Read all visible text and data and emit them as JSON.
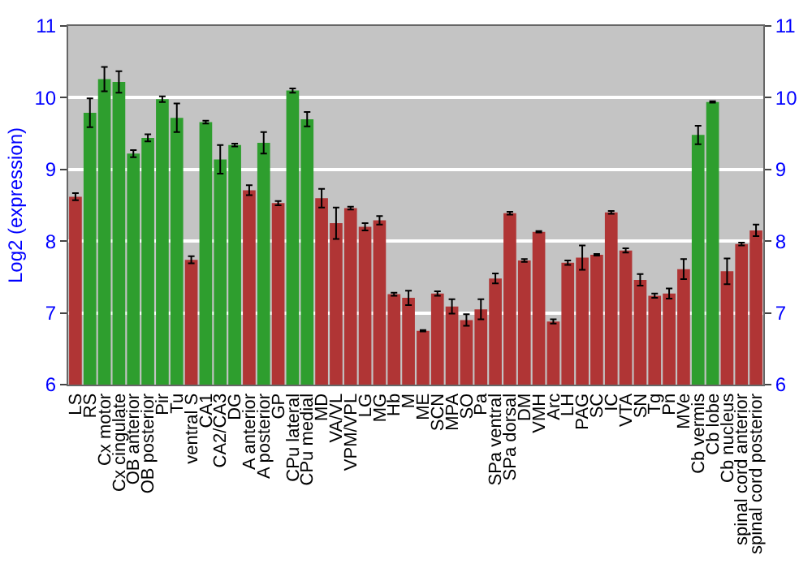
{
  "chart_data": {
    "type": "bar",
    "ylabel": "Log2 (expression)",
    "categories": [
      "LS",
      "RS",
      "Cx motor",
      "Cx cingulate",
      "OB anterior",
      "OB posterior",
      "Pir",
      "Tu",
      "ventral S",
      "CA1",
      "CA2/CA3",
      "DG",
      "A anterior",
      "A posterior",
      "GP",
      "CPu lateral",
      "CPu medial",
      "MD",
      "VA/VL",
      "VPM/VPL",
      "LG",
      "MG",
      "Hb",
      "M",
      "ME",
      "SCN",
      "MPA",
      "SO",
      "Pa",
      "SPa ventral",
      "SPa dorsal",
      "DM",
      "VMH",
      "Arc",
      "LH",
      "PAG",
      "SC",
      "IC",
      "VTA",
      "SN",
      "Tg",
      "Pn",
      "MVe",
      "Cb vermis",
      "Cb lobe",
      "Cb nucleus",
      "spinal cord anterior",
      "spinal cord posterior"
    ],
    "values": [
      8.62,
      9.79,
      10.26,
      10.22,
      9.22,
      9.44,
      9.98,
      9.72,
      7.74,
      9.66,
      9.14,
      9.34,
      8.71,
      9.37,
      8.53,
      10.1,
      9.7,
      8.6,
      8.25,
      8.46,
      8.2,
      8.29,
      7.26,
      7.21,
      6.75,
      7.27,
      7.09,
      6.9,
      7.05,
      7.48,
      8.39,
      7.73,
      8.13,
      6.88,
      7.7,
      7.77,
      7.81,
      8.4,
      7.87,
      7.46,
      7.24,
      7.27,
      7.61,
      9.48,
      9.94,
      7.58,
      7.96,
      8.15
    ],
    "errors": [
      0.05,
      0.2,
      0.17,
      0.15,
      0.05,
      0.05,
      0.04,
      0.2,
      0.05,
      0.02,
      0.2,
      0.02,
      0.07,
      0.15,
      0.03,
      0.03,
      0.1,
      0.13,
      0.22,
      0.02,
      0.05,
      0.06,
      0.02,
      0.1,
      0.01,
      0.03,
      0.1,
      0.08,
      0.14,
      0.07,
      0.02,
      0.02,
      0.01,
      0.03,
      0.03,
      0.17,
      0.01,
      0.02,
      0.03,
      0.08,
      0.03,
      0.07,
      0.14,
      0.13,
      0.01,
      0.18,
      0.02,
      0.08
    ],
    "colors": [
      "#b03535",
      "#2e9e2e",
      "#2e9e2e",
      "#2e9e2e",
      "#2e9e2e",
      "#2e9e2e",
      "#2e9e2e",
      "#2e9e2e",
      "#b03535",
      "#2e9e2e",
      "#2e9e2e",
      "#2e9e2e",
      "#b03535",
      "#2e9e2e",
      "#b03535",
      "#2e9e2e",
      "#2e9e2e",
      "#b03535",
      "#b03535",
      "#b03535",
      "#b03535",
      "#b03535",
      "#b03535",
      "#b03535",
      "#b03535",
      "#b03535",
      "#b03535",
      "#b03535",
      "#b03535",
      "#b03535",
      "#b03535",
      "#b03535",
      "#b03535",
      "#b03535",
      "#b03535",
      "#b03535",
      "#b03535",
      "#b03535",
      "#b03535",
      "#b03535",
      "#b03535",
      "#b03535",
      "#b03535",
      "#2e9e2e",
      "#2e9e2e",
      "#b03535",
      "#b03535",
      "#b03535"
    ],
    "ylim": [
      6,
      11
    ],
    "yticks": [
      6,
      7,
      8,
      9,
      10,
      11
    ],
    "y2lim": [
      6,
      11
    ],
    "y2ticks": [
      6,
      7,
      8,
      9,
      10,
      11
    ],
    "grid": "y",
    "legend": false
  }
}
